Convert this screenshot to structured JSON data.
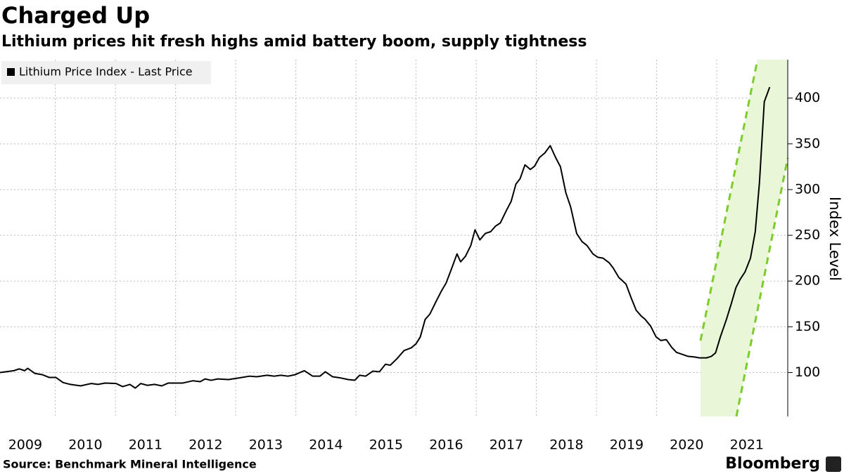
{
  "chart_data": {
    "type": "line",
    "title": "Charged Up",
    "subtitle": "Lithium prices hit fresh highs amid battery boom, supply tightness",
    "y_label": "Index Level",
    "source": "Source: Benchmark Mineral Intelligence",
    "brand": "Bloomberg",
    "legend": "upper left",
    "grid": true,
    "xlim": [
      2009.08,
      2022.18
    ],
    "xticks": [
      2009,
      2010,
      2011,
      2012,
      2013,
      2014,
      2015,
      2016,
      2017,
      2018,
      2019,
      2020,
      2021
    ],
    "ylim": [
      52,
      442
    ],
    "yticks": [
      100,
      150,
      200,
      250,
      300,
      350,
      400
    ],
    "x": [
      2009.08,
      2009.31,
      2009.4,
      2009.49,
      2009.54,
      2009.66,
      2009.78,
      2009.9,
      2010.01,
      2010.13,
      2010.25,
      2010.42,
      2010.6,
      2010.71,
      2010.83,
      2011.01,
      2011.12,
      2011.24,
      2011.33,
      2011.42,
      2011.53,
      2011.65,
      2011.77,
      2011.88,
      2012.12,
      2012.29,
      2012.41,
      2012.49,
      2012.59,
      2012.7,
      2012.88,
      2013.05,
      2013.23,
      2013.35,
      2013.52,
      2013.64,
      2013.75,
      2013.87,
      2013.99,
      2014.14,
      2014.28,
      2014.4,
      2014.49,
      2014.61,
      2014.75,
      2014.87,
      2014.98,
      2015.06,
      2015.16,
      2015.28,
      2015.39,
      2015.49,
      2015.57,
      2015.68,
      2015.8,
      2015.92,
      2016.0,
      2016.07,
      2016.15,
      2016.23,
      2016.33,
      2016.42,
      2016.5,
      2016.59,
      2016.68,
      2016.74,
      2016.82,
      2016.91,
      2016.98,
      2017.06,
      2017.15,
      2017.24,
      2017.32,
      2017.4,
      2017.5,
      2017.58,
      2017.66,
      2017.73,
      2017.81,
      2017.9,
      2017.97,
      2018.05,
      2018.14,
      2018.23,
      2018.32,
      2018.4,
      2018.49,
      2018.57,
      2018.67,
      2018.76,
      2018.84,
      2018.94,
      2019.02,
      2019.11,
      2019.21,
      2019.28,
      2019.37,
      2019.49,
      2019.58,
      2019.66,
      2019.74,
      2019.81,
      2019.9,
      2019.99,
      2020.07,
      2020.16,
      2020.25,
      2020.33,
      2020.42,
      2020.52,
      2020.63,
      2020.71,
      2020.83,
      2020.91,
      2020.98,
      2021.06,
      2021.16,
      2021.24,
      2021.32,
      2021.39,
      2021.47,
      2021.56,
      2021.64,
      2021.71,
      2021.79,
      2021.88
    ],
    "series": [
      {
        "name": "Lithium Price Index - Last Price",
        "color": "#000000",
        "values": [
          100,
          102,
          104,
          102,
          104.6,
          99,
          97.7,
          94.6,
          94.6,
          89,
          87,
          85.4,
          88,
          87,
          88.5,
          88,
          84.6,
          87,
          83,
          88,
          86,
          87,
          85.4,
          88.5,
          88.5,
          91,
          90,
          93,
          91.5,
          93,
          92.3,
          94,
          96,
          95.4,
          97,
          96,
          97,
          96,
          97.7,
          102,
          96,
          96,
          100.8,
          95.4,
          94,
          92.3,
          91.5,
          97,
          96,
          101.5,
          100.8,
          109,
          108,
          115,
          124,
          127,
          131.5,
          139,
          158,
          164,
          177.5,
          189,
          198,
          213.6,
          229.7,
          221,
          227,
          239,
          256,
          245,
          252,
          254,
          260,
          263.5,
          277,
          287,
          306,
          312,
          327,
          322,
          325.6,
          335,
          340,
          348,
          335,
          325,
          296.5,
          281,
          252,
          243,
          239,
          229.7,
          226,
          225,
          220,
          214,
          204,
          196.7,
          181,
          168,
          162,
          158,
          150.7,
          139,
          135,
          136,
          127.6,
          122,
          120,
          117.7,
          117,
          116,
          116,
          117.7,
          121.5,
          139,
          158,
          175,
          193,
          202,
          210,
          225,
          254,
          308,
          396,
          412
        ]
      }
    ]
  }
}
